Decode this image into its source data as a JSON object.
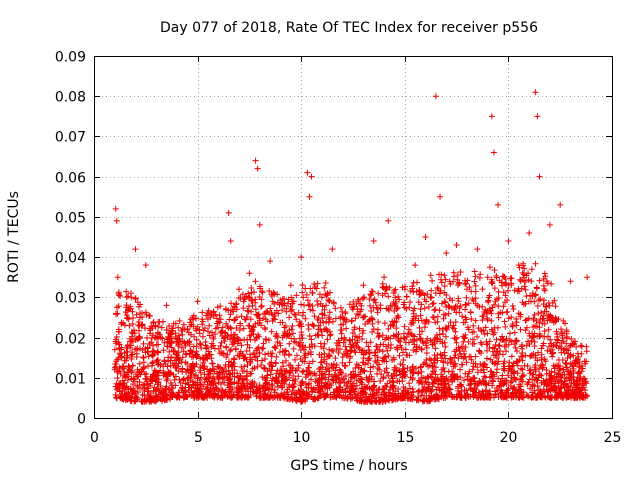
{
  "chart_data": {
    "type": "scatter",
    "title": "Day 077 of 2018, Rate Of TEC Index for receiver p556",
    "xlabel": "GPS time / hours",
    "ylabel": "ROTI / TECUs",
    "xlim": [
      0,
      25
    ],
    "ylim": [
      0,
      0.09
    ],
    "xticks": [
      "0",
      "5",
      "10",
      "15",
      "20",
      "25"
    ],
    "yticks": [
      "0",
      "0.01",
      "0.02",
      "0.03",
      "0.04",
      "0.05",
      "0.06",
      "0.07",
      "0.08",
      "0.09"
    ],
    "grid": true,
    "marker": "plus",
    "color": "#ee0000",
    "series": [
      {
        "name": "ROTI",
        "x": [
          1.0,
          1.05,
          1.1,
          1.15,
          1.2,
          1.3,
          1.5,
          1.8,
          2.0,
          2.1,
          2.5,
          2.7,
          3.0,
          3.5,
          4.0,
          4.5,
          5.0,
          5.5,
          6.0,
          6.5,
          6.6,
          7.0,
          7.5,
          7.8,
          7.9,
          8.0,
          8.5,
          9.0,
          9.5,
          10.0,
          10.3,
          10.4,
          10.5,
          11.0,
          11.5,
          12.0,
          12.5,
          13.0,
          13.5,
          14.0,
          14.2,
          14.5,
          15.0,
          15.5,
          16.0,
          16.5,
          16.7,
          17.0,
          17.5,
          18.0,
          18.5,
          19.0,
          19.2,
          19.3,
          19.5,
          20.0,
          20.5,
          21.0,
          21.3,
          21.4,
          21.5,
          22.0,
          22.5,
          23.0,
          23.5,
          23.8
        ],
        "y": [
          0.012,
          0.052,
          0.049,
          0.035,
          0.022,
          0.015,
          0.01,
          0.03,
          0.042,
          0.012,
          0.038,
          0.008,
          0.02,
          0.028,
          0.015,
          0.022,
          0.029,
          0.01,
          0.024,
          0.051,
          0.044,
          0.032,
          0.036,
          0.064,
          0.062,
          0.048,
          0.039,
          0.018,
          0.033,
          0.04,
          0.061,
          0.055,
          0.06,
          0.03,
          0.042,
          0.025,
          0.027,
          0.033,
          0.044,
          0.035,
          0.049,
          0.012,
          0.032,
          0.038,
          0.045,
          0.08,
          0.055,
          0.041,
          0.043,
          0.032,
          0.042,
          0.035,
          0.075,
          0.066,
          0.053,
          0.044,
          0.038,
          0.046,
          0.081,
          0.075,
          0.06,
          0.048,
          0.053,
          0.034,
          0.018,
          0.035
        ]
      }
    ],
    "envelope": {
      "x": [
        1,
        2,
        3,
        4,
        5,
        6,
        7,
        8,
        9,
        10,
        11,
        12,
        13,
        14,
        15,
        16,
        17,
        18,
        19,
        20,
        21,
        22,
        23,
        23.8
      ],
      "y_low": [
        0.005,
        0.004,
        0.004,
        0.005,
        0.005,
        0.005,
        0.005,
        0.005,
        0.005,
        0.004,
        0.005,
        0.005,
        0.004,
        0.004,
        0.005,
        0.004,
        0.005,
        0.005,
        0.005,
        0.005,
        0.005,
        0.005,
        0.005,
        0.005
      ],
      "y_high": [
        0.035,
        0.03,
        0.025,
        0.024,
        0.026,
        0.028,
        0.03,
        0.035,
        0.03,
        0.033,
        0.035,
        0.028,
        0.03,
        0.034,
        0.033,
        0.035,
        0.037,
        0.036,
        0.038,
        0.035,
        0.04,
        0.035,
        0.02,
        0.018
      ]
    }
  }
}
